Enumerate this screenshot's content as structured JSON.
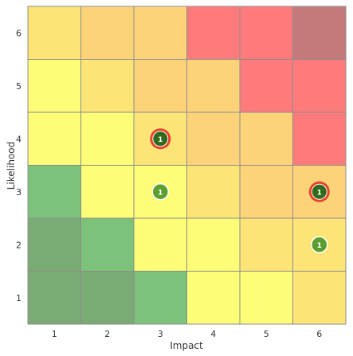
{
  "chart_data": {
    "type": "heatmap",
    "title": "",
    "xlabel": "Impact",
    "ylabel": "Likelihood",
    "x_ticks": [
      "1",
      "2",
      "3",
      "4",
      "5",
      "6"
    ],
    "y_ticks": [
      "1",
      "2",
      "3",
      "4",
      "5",
      "6"
    ],
    "cells": [
      [
        "#7aab74",
        "#7aab74",
        "#7cc27a",
        "#fdfd77",
        "#fdfd77",
        "#fde477"
      ],
      [
        "#7aab74",
        "#7cc27a",
        "#fdfd77",
        "#fdfd77",
        "#fde477",
        "#fde477"
      ],
      [
        "#7cc27a",
        "#fdfd77",
        "#fdfd77",
        "#fde477",
        "#fdd37a",
        "#fdd37a"
      ],
      [
        "#fdfd77",
        "#fdfd77",
        "#fde477",
        "#fdd37a",
        "#fdd37a",
        "#ff7b7b"
      ],
      [
        "#fdfd77",
        "#fde477",
        "#fdd37a",
        "#fdd37a",
        "#ff7b7b",
        "#ff7b7b"
      ],
      [
        "#fde477",
        "#fdd37a",
        "#fdd37a",
        "#ff7b7b",
        "#ff7b7b",
        "#c47a7a"
      ]
    ],
    "markers": [
      {
        "impact": 3,
        "likelihood": 4,
        "count": "1",
        "highlighted": true
      },
      {
        "impact": 3,
        "likelihood": 3,
        "count": "1",
        "highlighted": false
      },
      {
        "impact": 6,
        "likelihood": 3,
        "count": "1",
        "highlighted": true
      },
      {
        "impact": 6,
        "likelihood": 2,
        "count": "1",
        "highlighted": false
      }
    ],
    "colors": {
      "marker_fill": "#5a9e2f",
      "marker_fill_dark": "#2f6b1a",
      "highlight_ring": "#e8402a",
      "grid_line": "#8c8c8c"
    }
  }
}
